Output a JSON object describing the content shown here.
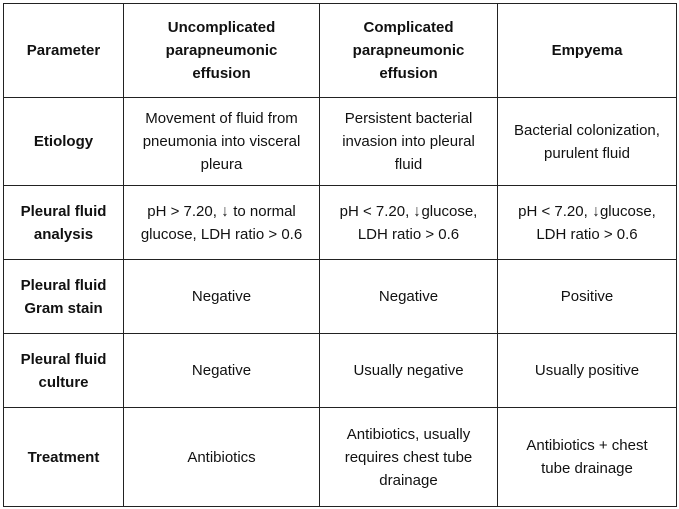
{
  "table": {
    "headers": [
      [
        "Parameter"
      ],
      [
        "Uncomplicated",
        "parapneumonic",
        "effusion"
      ],
      [
        "Complicated",
        "parapneumonic",
        "effusion"
      ],
      [
        "Empyema"
      ]
    ],
    "rows": [
      {
        "parameter": [
          "Etiology"
        ],
        "uncomplicated": [
          "Movement of fluid from",
          "pneumonia into visceral",
          "pleura"
        ],
        "complicated": [
          "Persistent bacterial",
          "invasion into pleural",
          "fluid"
        ],
        "empyema": [
          "Bacterial colonization,",
          "purulent fluid"
        ]
      },
      {
        "parameter": [
          "Pleural fluid",
          "analysis"
        ],
        "uncomplicated": {
          "pre": "pH > 7.20,",
          "arrow": "↓",
          "post": " to normal",
          "line2": "glucose, LDH ratio > 0.6"
        },
        "complicated": {
          "pre": "pH < 7.20,",
          "arrow": "↓",
          "post": "glucose,",
          "line2": "LDH ratio > 0.6"
        },
        "empyema": {
          "pre": "pH < 7.20,",
          "arrow": "↓",
          "post": "glucose,",
          "line2": "LDH ratio > 0.6"
        }
      },
      {
        "parameter": [
          "Pleural fluid",
          "Gram stain"
        ],
        "uncomplicated": [
          "Negative"
        ],
        "complicated": [
          "Negative"
        ],
        "empyema": [
          "Positive"
        ]
      },
      {
        "parameter": [
          "Pleural fluid",
          "culture"
        ],
        "uncomplicated": [
          "Negative"
        ],
        "complicated": [
          "Usually negative"
        ],
        "empyema": [
          "Usually positive"
        ]
      },
      {
        "parameter": [
          "Treatment"
        ],
        "uncomplicated": [
          "Antibiotics"
        ],
        "complicated": [
          "Antibiotics, usually",
          "requires chest tube",
          "drainage"
        ],
        "empyema": [
          "Antibiotics + chest",
          "tube drainage"
        ]
      }
    ]
  }
}
